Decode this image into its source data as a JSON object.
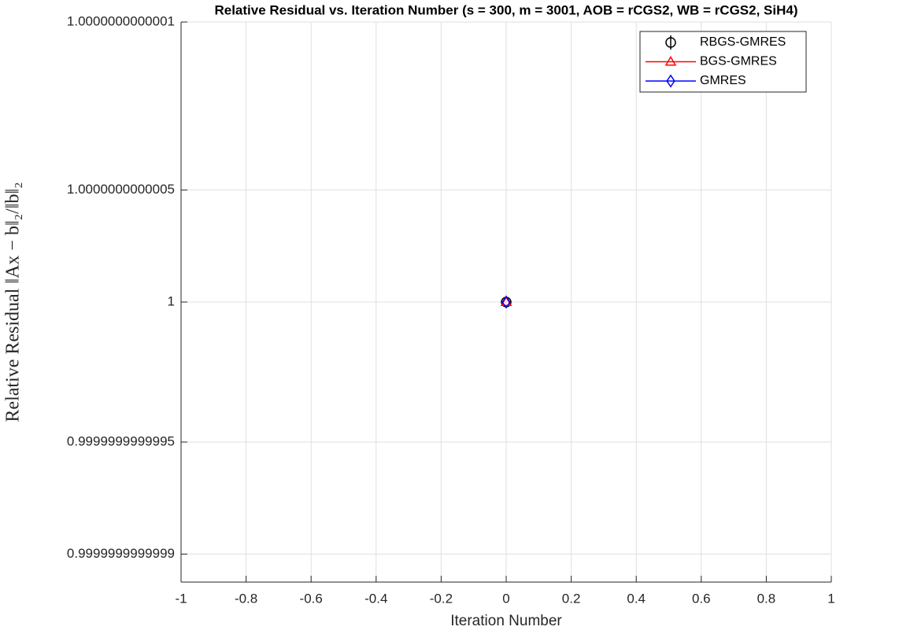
{
  "chart_data": {
    "type": "line",
    "title": "Relative Residual vs. Iteration Number (s = 300, m = 3001, AOB = rCGS2, WB = rCGS2, SiH4)",
    "x_label": "Iteration Number",
    "y_label": "Relative Residual ‖Ax − b‖₂/‖b‖₂",
    "x": [
      0
    ],
    "series": [
      {
        "name": "RBGS-GMRES",
        "color": "#000000",
        "marker": "circle",
        "values": [
          1
        ]
      },
      {
        "name": "BGS-GMRES",
        "color": "#ff0000",
        "marker": "triangle",
        "values": [
          1
        ]
      },
      {
        "name": "GMRES",
        "color": "#0000ff",
        "marker": "diamond",
        "values": [
          1
        ]
      }
    ],
    "xlim": [
      -1,
      1
    ],
    "xticks": [
      -1,
      -0.8,
      -0.6,
      -0.4,
      -0.2,
      0,
      0.2,
      0.4,
      0.6,
      0.8,
      1
    ],
    "ylim": [
      0.9999999999999989,
      1.000000000000001
    ],
    "yticks": [
      {
        "value": 0.999999999999999,
        "label": "0.9999999999999"
      },
      {
        "value": 0.9999999999999994,
        "label": "0.9999999999995"
      },
      1,
      {
        "value": 1.0000000000000004,
        "label": "1.0000000000005"
      },
      {
        "value": 1.000000000000001,
        "label": "1.0000000000001"
      }
    ],
    "grid": true,
    "legend": "top-right"
  }
}
